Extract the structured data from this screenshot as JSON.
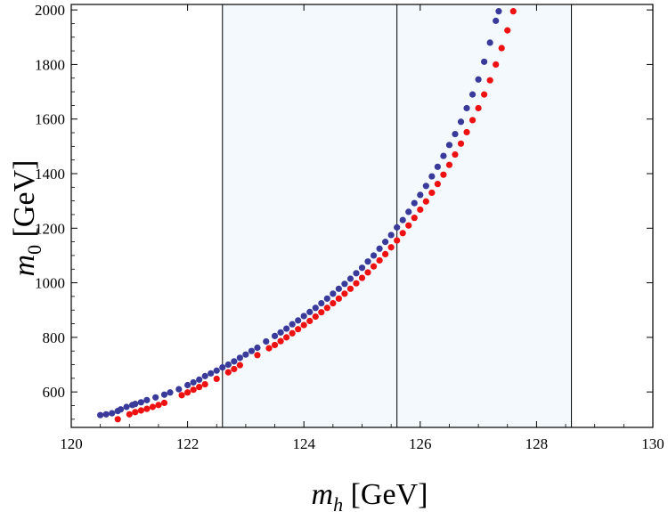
{
  "chart_data": {
    "type": "scatter",
    "xlabel": {
      "symbol": "m",
      "subscript": "h",
      "unit": " [GeV]"
    },
    "ylabel": {
      "symbol": "m",
      "subscript": "0",
      "unit": " [GeV]"
    },
    "xlim": [
      120,
      130
    ],
    "ylim": [
      470,
      2020
    ],
    "x_ticks": [
      120,
      122,
      124,
      126,
      128,
      130
    ],
    "y_ticks": [
      600,
      800,
      1000,
      1200,
      1400,
      1600,
      1800,
      2000
    ],
    "shaded_band": {
      "x_from": 122.6,
      "x_to": 128.6,
      "color": "#f3f9fd"
    },
    "vertical_lines": [
      122.6,
      125.6,
      128.6
    ],
    "series": [
      {
        "name": "blue",
        "color": "#3a3a9a",
        "points": [
          [
            120.5,
            515
          ],
          [
            120.6,
            518
          ],
          [
            120.7,
            522
          ],
          [
            120.8,
            530
          ],
          [
            120.85,
            536
          ],
          [
            120.95,
            545
          ],
          [
            121.05,
            552
          ],
          [
            121.1,
            556
          ],
          [
            121.2,
            562
          ],
          [
            121.3,
            570
          ],
          [
            121.45,
            580
          ],
          [
            121.6,
            590
          ],
          [
            121.7,
            598
          ],
          [
            121.85,
            610
          ],
          [
            122.0,
            625
          ],
          [
            122.1,
            635
          ],
          [
            122.2,
            645
          ],
          [
            122.3,
            658
          ],
          [
            122.4,
            668
          ],
          [
            122.5,
            678
          ],
          [
            122.6,
            690
          ],
          [
            122.7,
            700
          ],
          [
            122.8,
            712
          ],
          [
            122.9,
            725
          ],
          [
            123.0,
            737
          ],
          [
            123.1,
            750
          ],
          [
            123.2,
            762
          ],
          [
            123.35,
            785
          ],
          [
            123.5,
            805
          ],
          [
            123.6,
            818
          ],
          [
            123.7,
            832
          ],
          [
            123.8,
            848
          ],
          [
            123.9,
            862
          ],
          [
            124.0,
            878
          ],
          [
            124.1,
            893
          ],
          [
            124.2,
            908
          ],
          [
            124.3,
            925
          ],
          [
            124.4,
            942
          ],
          [
            124.5,
            960
          ],
          [
            124.6,
            978
          ],
          [
            124.7,
            996
          ],
          [
            124.8,
            1015
          ],
          [
            124.9,
            1035
          ],
          [
            125.0,
            1055
          ],
          [
            125.1,
            1078
          ],
          [
            125.2,
            1100
          ],
          [
            125.3,
            1125
          ],
          [
            125.4,
            1150
          ],
          [
            125.5,
            1175
          ],
          [
            125.6,
            1203
          ],
          [
            125.7,
            1230
          ],
          [
            125.8,
            1260
          ],
          [
            125.9,
            1292
          ],
          [
            126.0,
            1322
          ],
          [
            126.1,
            1355
          ],
          [
            126.2,
            1390
          ],
          [
            126.3,
            1425
          ],
          [
            126.4,
            1465
          ],
          [
            126.5,
            1505
          ],
          [
            126.6,
            1545
          ],
          [
            126.7,
            1590
          ],
          [
            126.8,
            1640
          ],
          [
            126.9,
            1690
          ],
          [
            127.0,
            1745
          ],
          [
            127.1,
            1810
          ],
          [
            127.2,
            1880
          ],
          [
            127.3,
            1960
          ],
          [
            127.35,
            1995
          ]
        ]
      },
      {
        "name": "red",
        "color": "#ee1111",
        "points": [
          [
            120.8,
            500
          ],
          [
            121.0,
            518
          ],
          [
            121.1,
            526
          ],
          [
            121.2,
            532
          ],
          [
            121.3,
            538
          ],
          [
            121.4,
            545
          ],
          [
            121.5,
            552
          ],
          [
            121.6,
            560
          ],
          [
            121.9,
            588
          ],
          [
            122.0,
            598
          ],
          [
            122.1,
            608
          ],
          [
            122.2,
            618
          ],
          [
            122.3,
            628
          ],
          [
            122.5,
            648
          ],
          [
            122.7,
            672
          ],
          [
            122.8,
            684
          ],
          [
            122.9,
            698
          ],
          [
            123.2,
            735
          ],
          [
            123.4,
            760
          ],
          [
            123.5,
            772
          ],
          [
            123.6,
            786
          ],
          [
            123.7,
            800
          ],
          [
            123.8,
            815
          ],
          [
            123.9,
            830
          ],
          [
            124.0,
            845
          ],
          [
            124.1,
            860
          ],
          [
            124.2,
            876
          ],
          [
            124.3,
            892
          ],
          [
            124.4,
            908
          ],
          [
            124.5,
            925
          ],
          [
            124.6,
            942
          ],
          [
            124.7,
            960
          ],
          [
            124.8,
            978
          ],
          [
            124.9,
            998
          ],
          [
            125.0,
            1018
          ],
          [
            125.1,
            1038
          ],
          [
            125.2,
            1060
          ],
          [
            125.3,
            1082
          ],
          [
            125.4,
            1105
          ],
          [
            125.5,
            1130
          ],
          [
            125.6,
            1155
          ],
          [
            125.7,
            1182
          ],
          [
            125.8,
            1210
          ],
          [
            125.9,
            1238
          ],
          [
            126.0,
            1268
          ],
          [
            126.1,
            1298
          ],
          [
            126.2,
            1330
          ],
          [
            126.3,
            1362
          ],
          [
            126.4,
            1396
          ],
          [
            126.5,
            1432
          ],
          [
            126.6,
            1470
          ],
          [
            126.7,
            1510
          ],
          [
            126.8,
            1552
          ],
          [
            126.9,
            1596
          ],
          [
            127.0,
            1640
          ],
          [
            127.1,
            1690
          ],
          [
            127.2,
            1742
          ],
          [
            127.3,
            1800
          ],
          [
            127.4,
            1860
          ],
          [
            127.5,
            1925
          ],
          [
            127.6,
            1995
          ]
        ]
      }
    ]
  }
}
